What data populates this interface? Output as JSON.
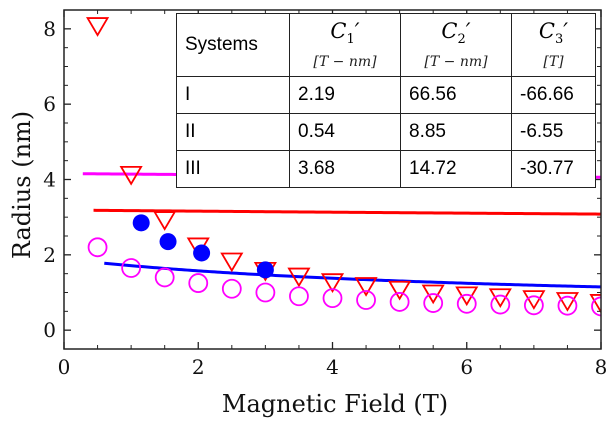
{
  "chart_data": {
    "type": "scatter",
    "xlabel": "Magnetic Field (T)",
    "ylabel": "Radius (nm)",
    "xlim": [
      0,
      8
    ],
    "ylim": [
      -0.5,
      8.5
    ],
    "x_ticks": [
      "0",
      "2",
      "4",
      "6",
      "8"
    ],
    "y_ticks": [
      "0",
      "2",
      "4",
      "6",
      "8"
    ],
    "grid": false,
    "legend": "none",
    "series": [
      {
        "color": "#ff0000",
        "marker": "open-triangle-down",
        "x": [
          0.5,
          1.0,
          1.5,
          2.0,
          2.5,
          3.0,
          3.5,
          4.0,
          4.5,
          5.0,
          5.5,
          6.0,
          6.5,
          7.0,
          7.5,
          8.0
        ],
        "y": [
          8.1,
          4.15,
          2.95,
          2.25,
          1.85,
          1.6,
          1.45,
          1.3,
          1.2,
          1.1,
          1.0,
          0.95,
          0.9,
          0.85,
          0.8,
          0.75
        ],
        "fit": {
          "C1": 2.19,
          "C2": 66.56,
          "C3": -66.66,
          "x_from": 0.44,
          "x_to": 8.0
        }
      },
      {
        "color": "#0000ff",
        "marker": "filled-circle",
        "x": [
          1.15,
          1.55,
          2.05,
          3.0
        ],
        "y": [
          2.85,
          2.35,
          2.05,
          1.6
        ],
        "fit": {
          "C1": 0.54,
          "C2": 8.85,
          "C3": -6.55,
          "x_from": 0.6,
          "x_to": 8.0
        }
      },
      {
        "color": "#ff00ff",
        "marker": "open-circle",
        "x": [
          0.5,
          1.0,
          1.5,
          2.0,
          2.5,
          3.0,
          3.5,
          4.0,
          4.5,
          5.0,
          5.5,
          6.0,
          6.5,
          7.0,
          7.5,
          8.0
        ],
        "y": [
          2.2,
          1.65,
          1.4,
          1.25,
          1.1,
          1.0,
          0.9,
          0.85,
          0.8,
          0.75,
          0.72,
          0.7,
          0.68,
          0.66,
          0.65,
          0.63
        ],
        "fit": {
          "C1": 3.68,
          "C2": 14.72,
          "C3": -30.77,
          "x_from": 0.28,
          "x_to": 8.0
        }
      }
    ],
    "table": {
      "headers": [
        {
          "text": "Systems"
        },
        {
          "symbol": "C",
          "sub": "1",
          "prime": "′",
          "unit": "[T − nm]"
        },
        {
          "symbol": "C",
          "sub": "2",
          "prime": "′",
          "unit": "[T − nm]"
        },
        {
          "symbol": "C",
          "sub": "3",
          "prime": "′",
          "unit": "[T]"
        }
      ],
      "rows": [
        [
          "I",
          "2.19",
          "66.56",
          "-66.66"
        ],
        [
          "II",
          "0.54",
          "8.85",
          "-6.55"
        ],
        [
          "III",
          "3.68",
          "14.72",
          "-30.77"
        ]
      ]
    }
  }
}
